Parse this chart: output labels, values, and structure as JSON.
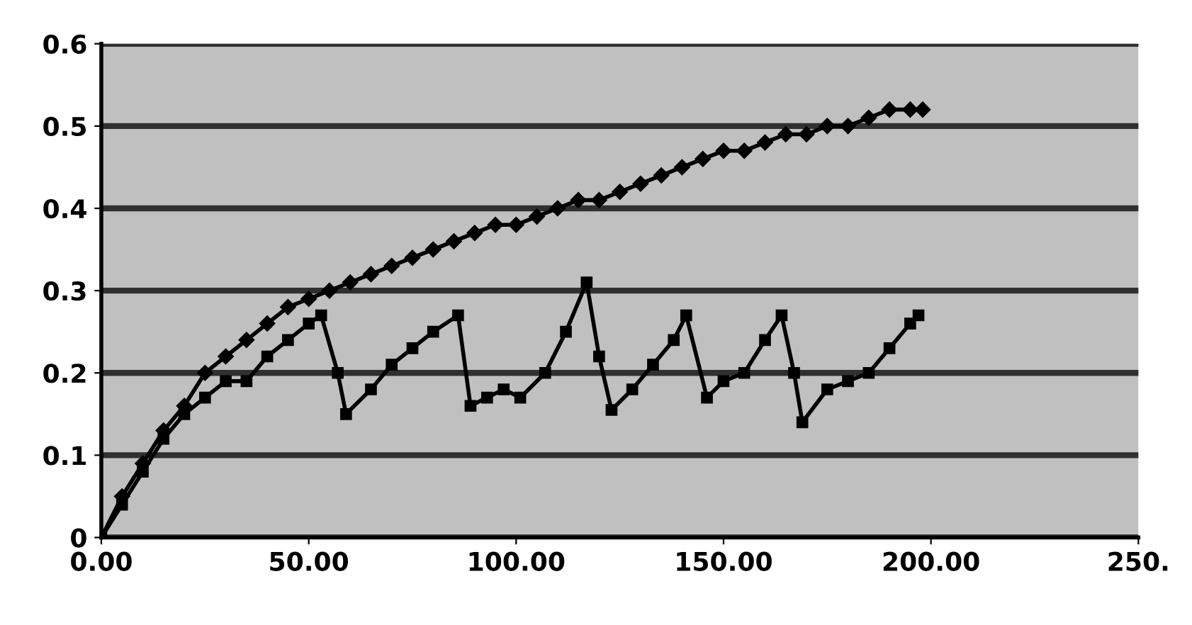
{
  "chart_data": {
    "type": "line",
    "grid": "y",
    "legend": false,
    "line_style": "solid",
    "xlim": [
      0,
      250
    ],
    "xticks": [
      {
        "value": 0,
        "label": "0.00"
      },
      {
        "value": 50,
        "label": "50.00"
      },
      {
        "value": 100,
        "label": "100.00"
      },
      {
        "value": 150,
        "label": "150.00"
      },
      {
        "value": 200,
        "label": "200.00"
      },
      {
        "value": 250,
        "label": "250."
      }
    ],
    "ylim": [
      0,
      0.6
    ],
    "yticks": [
      0,
      0.1,
      0.2,
      0.3,
      0.4,
      0.5,
      0.6
    ],
    "series": [
      {
        "color": "#000000",
        "marker": "diamond",
        "x": [
          0,
          5,
          10,
          15,
          20,
          25,
          30,
          35,
          40,
          45,
          50,
          55,
          60,
          65,
          70,
          75,
          80,
          85,
          90,
          95,
          100,
          105,
          110,
          115,
          120,
          125,
          130,
          135,
          140,
          145,
          150,
          155,
          160,
          165,
          170,
          175,
          180,
          185,
          190,
          195,
          198
        ],
        "values": [
          0,
          0.05,
          0.09,
          0.13,
          0.16,
          0.2,
          0.22,
          0.24,
          0.26,
          0.28,
          0.29,
          0.3,
          0.31,
          0.32,
          0.33,
          0.34,
          0.35,
          0.36,
          0.37,
          0.38,
          0.38,
          0.39,
          0.4,
          0.41,
          0.41,
          0.42,
          0.43,
          0.44,
          0.45,
          0.46,
          0.47,
          0.47,
          0.48,
          0.49,
          0.49,
          0.5,
          0.5,
          0.51,
          0.52,
          0.52,
          0.52
        ]
      },
      {
        "color": "#000000",
        "marker": "square",
        "x": [
          0,
          5,
          10,
          15,
          20,
          25,
          30,
          35,
          40,
          45,
          50,
          53,
          57,
          59,
          65,
          70,
          75,
          80,
          86,
          89,
          93,
          97,
          101,
          107,
          112,
          117,
          120,
          123,
          128,
          133,
          138,
          141,
          146,
          150,
          155,
          160,
          164,
          167,
          169,
          175,
          180,
          185,
          190,
          195,
          197
        ],
        "values": [
          0,
          0.04,
          0.08,
          0.12,
          0.15,
          0.17,
          0.19,
          0.19,
          0.22,
          0.24,
          0.26,
          0.27,
          0.2,
          0.15,
          0.18,
          0.21,
          0.23,
          0.25,
          0.27,
          0.16,
          0.17,
          0.18,
          0.17,
          0.2,
          0.25,
          0.31,
          0.22,
          0.155,
          0.18,
          0.21,
          0.24,
          0.27,
          0.17,
          0.19,
          0.2,
          0.24,
          0.27,
          0.2,
          0.14,
          0.18,
          0.19,
          0.2,
          0.23,
          0.26,
          0.27
        ]
      }
    ]
  }
}
